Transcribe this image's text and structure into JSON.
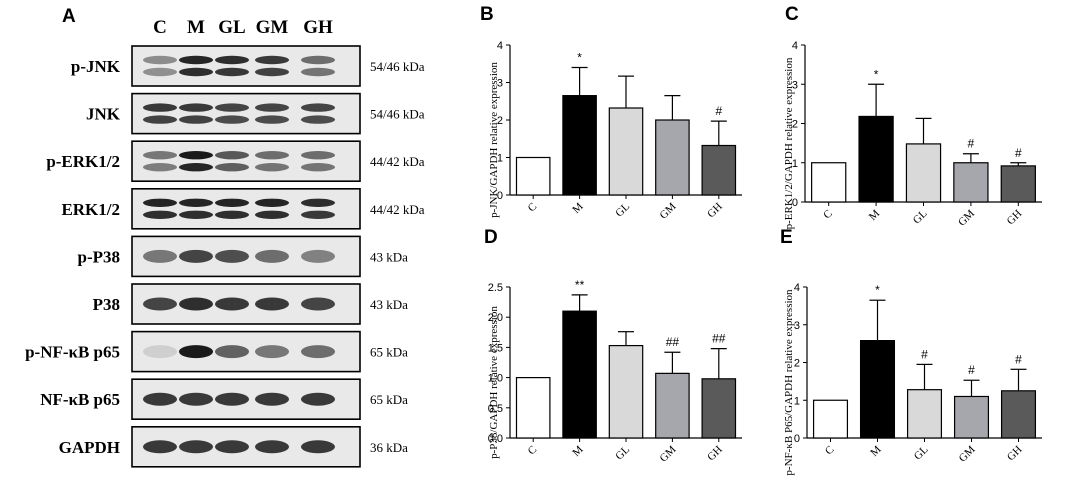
{
  "blot": {
    "letter": "A",
    "lanes": [
      "C",
      "M",
      "GL",
      "GM",
      "GH"
    ],
    "rows": [
      {
        "label": "p-JNK",
        "mw": "54/46 kDa",
        "intensity": [
          0.45,
          0.95,
          0.9,
          0.85,
          0.6
        ],
        "pattern": "double"
      },
      {
        "label": "JNK",
        "mw": "54/46 kDa",
        "intensity": [
          0.85,
          0.85,
          0.8,
          0.8,
          0.8
        ],
        "pattern": "double"
      },
      {
        "label": "p-ERK1/2",
        "mw": "44/42 kDa",
        "intensity": [
          0.55,
          1.0,
          0.7,
          0.6,
          0.6
        ],
        "pattern": "double"
      },
      {
        "label": "ERK1/2",
        "mw": "44/42 kDa",
        "intensity": [
          0.95,
          0.95,
          0.95,
          0.95,
          0.9
        ],
        "pattern": "double"
      },
      {
        "label": "p-P38",
        "mw": "43 kDa",
        "intensity": [
          0.55,
          0.8,
          0.75,
          0.6,
          0.5
        ],
        "pattern": "single"
      },
      {
        "label": "P38",
        "mw": "43 kDa",
        "intensity": [
          0.8,
          0.9,
          0.85,
          0.85,
          0.8
        ],
        "pattern": "single"
      },
      {
        "label": "p-NF-κB p65",
        "mw": "65 kDa",
        "intensity": [
          0.12,
          1.0,
          0.65,
          0.55,
          0.6
        ],
        "pattern": "single"
      },
      {
        "label": "NF-κB p65",
        "mw": "65 kDa",
        "intensity": [
          0.85,
          0.85,
          0.85,
          0.85,
          0.85
        ],
        "pattern": "single"
      },
      {
        "label": "GAPDH",
        "mw": "36 kDa",
        "intensity": [
          0.85,
          0.85,
          0.85,
          0.85,
          0.85
        ],
        "pattern": "single"
      }
    ]
  },
  "chart_data": [
    {
      "panel": "B",
      "type": "bar",
      "ylabel": "p-JNK/GAPDH relative expression",
      "categories": [
        "C",
        "M",
        "GL",
        "GM",
        "GH"
      ],
      "values": [
        1.0,
        2.65,
        2.32,
        2.0,
        1.32
      ],
      "errors": [
        0.0,
        0.75,
        0.85,
        0.65,
        0.65
      ],
      "annotations": [
        "",
        "*",
        "",
        "",
        "#"
      ],
      "ylim": [
        0,
        4
      ],
      "yticks": [
        "0",
        "1",
        "2",
        "3",
        "4"
      ]
    },
    {
      "panel": "C",
      "type": "bar",
      "ylabel": "p-ERK1/2/GAPDH relative expression",
      "categories": [
        "C",
        "M",
        "GL",
        "GM",
        "GH"
      ],
      "values": [
        1.0,
        2.18,
        1.48,
        1.0,
        0.92
      ],
      "errors": [
        0.0,
        0.82,
        0.65,
        0.23,
        0.08
      ],
      "annotations": [
        "",
        "*",
        "",
        "#",
        "#"
      ],
      "ylim": [
        0,
        4
      ],
      "yticks": [
        "0",
        "1",
        "2",
        "3",
        "4"
      ]
    },
    {
      "panel": "D",
      "type": "bar",
      "ylabel": "p-P38/GAPDH relative expression",
      "categories": [
        "C",
        "M",
        "GL",
        "GM",
        "GH"
      ],
      "values": [
        1.0,
        2.1,
        1.53,
        1.07,
        0.98
      ],
      "errors": [
        0.0,
        0.27,
        0.23,
        0.35,
        0.5
      ],
      "annotations": [
        "",
        "**",
        "",
        "##",
        "##"
      ],
      "ylim": [
        0,
        2.5
      ],
      "yticks": [
        "0.0",
        "0.5",
        "1.0",
        "1.5",
        "2.0",
        "2.5"
      ]
    },
    {
      "panel": "E",
      "type": "bar",
      "ylabel": "p-NF-κB P65/GAPDH relative expression",
      "categories": [
        "C",
        "M",
        "GL",
        "GM",
        "GH"
      ],
      "values": [
        1.0,
        2.58,
        1.28,
        1.1,
        1.25
      ],
      "errors": [
        0.0,
        1.07,
        0.67,
        0.43,
        0.57
      ],
      "annotations": [
        "",
        "*",
        "#",
        "#",
        "#"
      ],
      "ylim": [
        0,
        4
      ],
      "yticks": [
        "0",
        "1",
        "2",
        "3",
        "4"
      ]
    }
  ],
  "colors": {
    "bar_fills": [
      "#ffffff",
      "#000000",
      "#d9d9d9",
      "#a6a6ad",
      "#5a5a5a"
    ],
    "band": "#1a1a1a",
    "blot_bg": "#e9e9e9"
  }
}
